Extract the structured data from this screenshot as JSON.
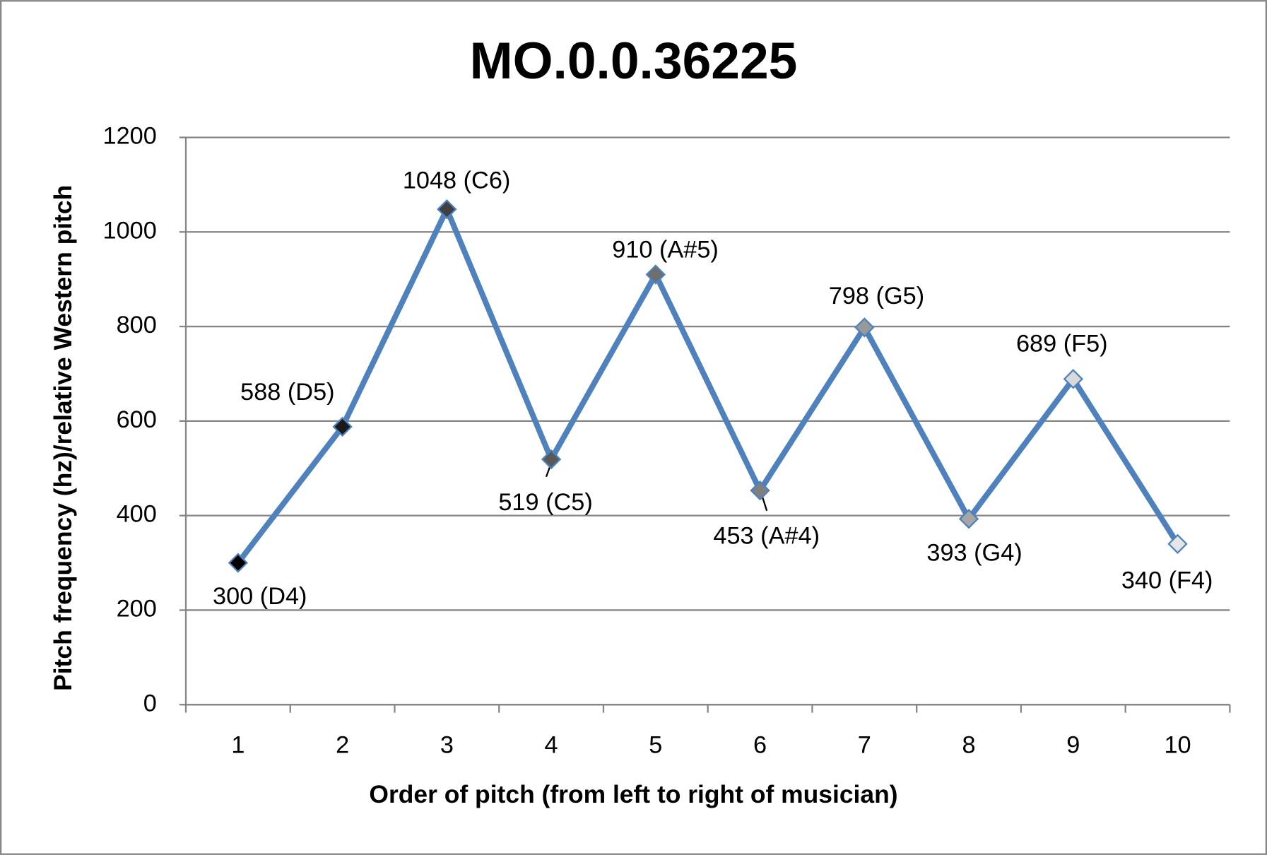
{
  "chart_data": {
    "type": "line",
    "title": "MO.0.0.36225",
    "x_label": "Order of pitch (from left to right of musician)",
    "y_label": "Pitch frequency (hz)/relative Western pitch",
    "categories": [
      "1",
      "2",
      "3",
      "4",
      "5",
      "6",
      "7",
      "8",
      "9",
      "10"
    ],
    "values": [
      300,
      588,
      1048,
      519,
      910,
      453,
      798,
      393,
      689,
      340
    ],
    "value_labels": [
      "300 (D4)",
      "588 (D5)",
      "1048 (C6)",
      "519 (C5)",
      "910 (A#5)",
      "453 (A#4)",
      "798 (G5)",
      "393 (G4)",
      "689 (F5)",
      "340 (F4)"
    ],
    "color": "#4f81bd",
    "marker_colors": [
      "#000000",
      "#1a1a1a",
      "#404040",
      "#595959",
      "#6e6e6e",
      "#808080",
      "#999999",
      "#a6a6a6",
      "#d9d9d9",
      "#e6e6e6"
    ],
    "ylim": [
      0,
      1200
    ],
    "yticks": [
      0,
      200,
      400,
      600,
      800,
      1000,
      1200
    ],
    "grid": true
  }
}
